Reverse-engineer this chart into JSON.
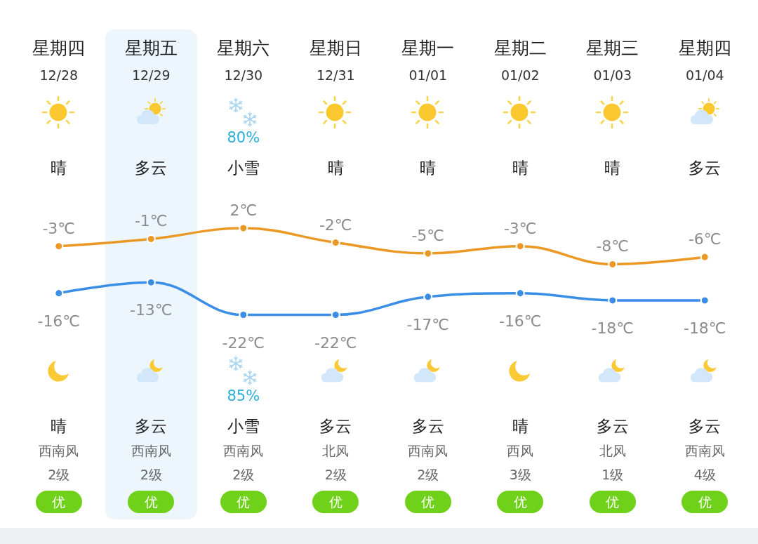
{
  "chart_data": {
    "type": "line",
    "categories": [
      "星期四\n12/28",
      "星期五\n12/29",
      "星期六\n12/30",
      "星期日\n12/31",
      "星期一\n01/01",
      "星期二\n01/02",
      "星期三\n01/03",
      "星期四\n01/04"
    ],
    "series": [
      {
        "color": "#ec9824",
        "values": [
          -3,
          -1,
          2,
          -2,
          -5,
          -3,
          -8,
          -6
        ],
        "value_labels": [
          "-3℃",
          "-1℃",
          "2℃",
          "-2℃",
          "-5℃",
          "-3℃",
          "-8℃",
          "-6℃"
        ]
      },
      {
        "color": "#3a8ee6",
        "values": [
          -16,
          -13,
          -22,
          -22,
          -17,
          -16,
          -18,
          -18
        ],
        "value_labels": [
          "-16℃",
          "-13℃",
          "-22℃",
          "-22℃",
          "-17℃",
          "-16℃",
          "-18℃",
          "-18℃"
        ]
      }
    ],
    "marker": "circle",
    "line_style": "solid",
    "bands": [
      {
        "axis": "x",
        "from": "星期五\n12/29",
        "to": "星期五\n12/29",
        "color": "#edf6fd"
      }
    ],
    "annotations": [
      "80%",
      "晴",
      "多云",
      "小雪",
      "晴",
      "晴",
      "晴",
      "晴",
      "多云",
      "85%",
      "晴",
      "多云",
      "小雪",
      "多云",
      "多云",
      "晴",
      "多云",
      "多云",
      "西南风",
      "西南风",
      "西南风",
      "北风",
      "西南风",
      "西风",
      "北风",
      "西南风",
      "2级",
      "2级",
      "2级",
      "2级",
      "2级",
      "3级",
      "1级",
      "4级",
      "优",
      "优",
      "优",
      "优",
      "优",
      "优",
      "优",
      "优"
    ]
  }
}
